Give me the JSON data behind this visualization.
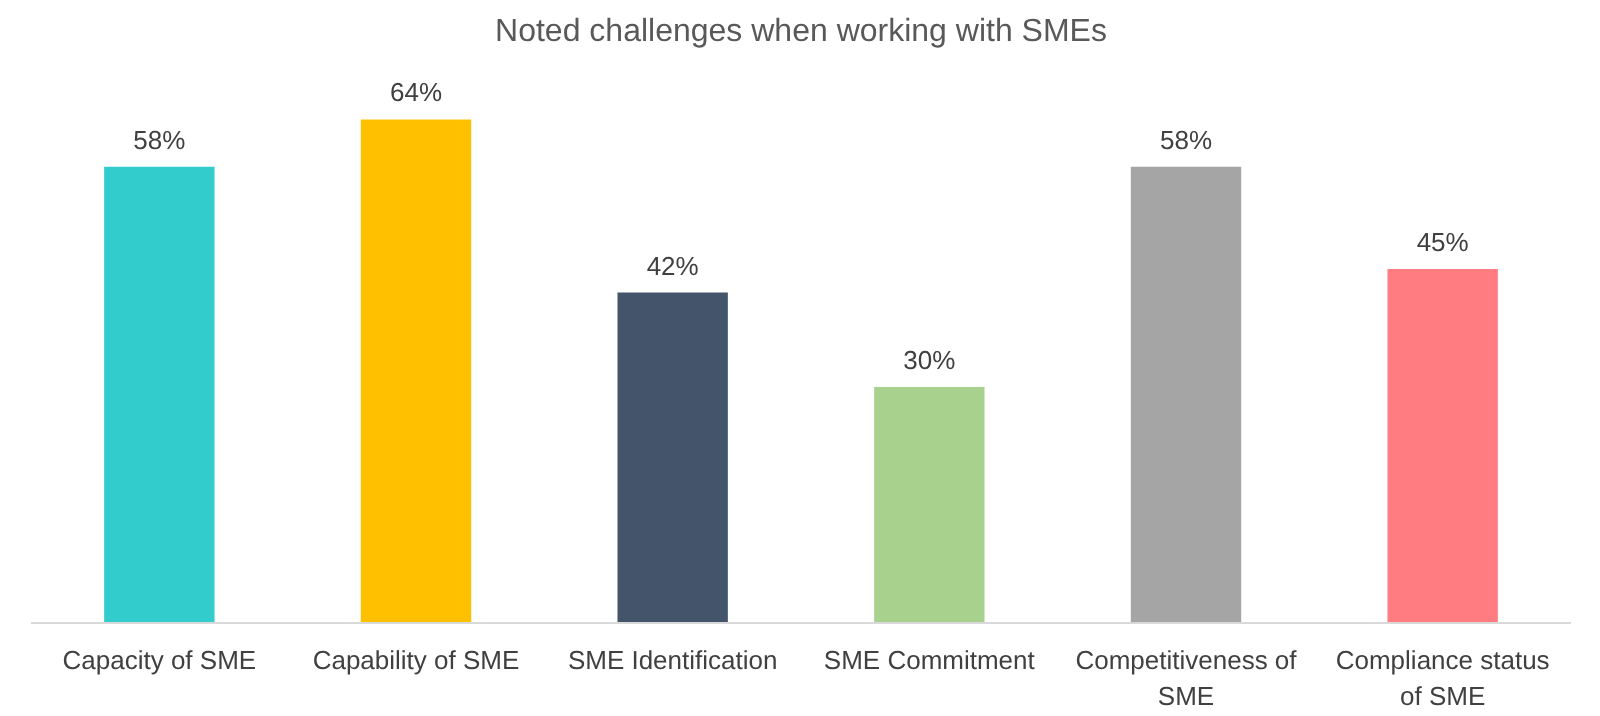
{
  "chart_data": {
    "type": "bar",
    "title": "Noted challenges when working with SMEs",
    "categories": [
      "Capacity of SME",
      "Capability of SME",
      "SME Identification",
      "SME Commitment",
      "Competitiveness of SME",
      "Compliance status of SME"
    ],
    "values": [
      58,
      64,
      42,
      30,
      58,
      45
    ],
    "colors": [
      "#33cccc",
      "#ffc000",
      "#44546a",
      "#a9d18e",
      "#a5a5a5",
      "#ff7c80"
    ],
    "value_labels": [
      "58%",
      "64%",
      "42%",
      "30%",
      "58%",
      "45%"
    ]
  }
}
